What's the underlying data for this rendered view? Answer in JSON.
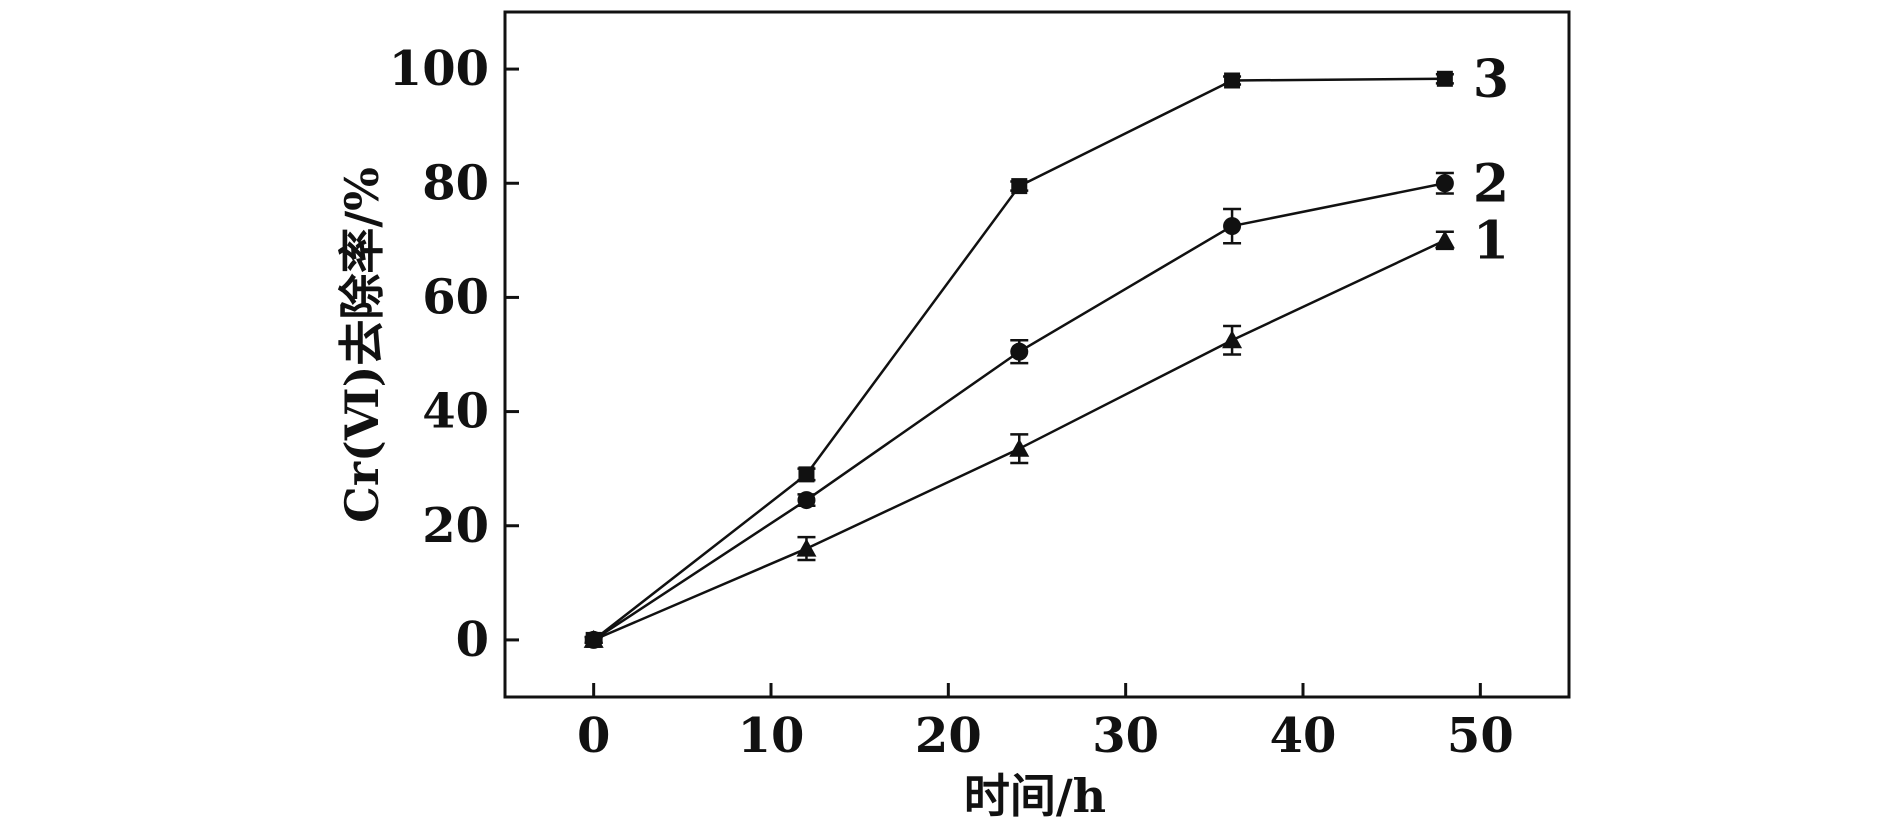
{
  "chart_data": {
    "type": "line",
    "xlabel": "时间/h",
    "ylabel": "Cr(Ⅵ)去除率/%",
    "xlim": [
      -5,
      55
    ],
    "ylim": [
      -10,
      110
    ],
    "xticks": [
      "0",
      "10",
      "20",
      "30",
      "40",
      "50"
    ],
    "yticks": [
      "0",
      "20",
      "40",
      "60",
      "80",
      "100"
    ],
    "x": [
      0,
      12,
      24,
      36,
      48
    ],
    "grid": false,
    "legend": "none",
    "series": [
      {
        "name": "1",
        "marker": "triangle",
        "values": [
          0,
          16,
          33.5,
          52.5,
          70
        ],
        "errors": [
          0.5,
          2,
          2.5,
          2.5,
          1.5
        ]
      },
      {
        "name": "2",
        "marker": "circle",
        "values": [
          0,
          24.5,
          50.5,
          72.5,
          80
        ],
        "errors": [
          0.5,
          1,
          2,
          3,
          1.8
        ]
      },
      {
        "name": "3",
        "marker": "square",
        "values": [
          0,
          29,
          79.5,
          98,
          98.3
        ],
        "errors": [
          0.5,
          1,
          0.8,
          0.7,
          0.8
        ]
      }
    ],
    "colors": {
      "line": "#111111",
      "background": "#ffffff"
    }
  }
}
